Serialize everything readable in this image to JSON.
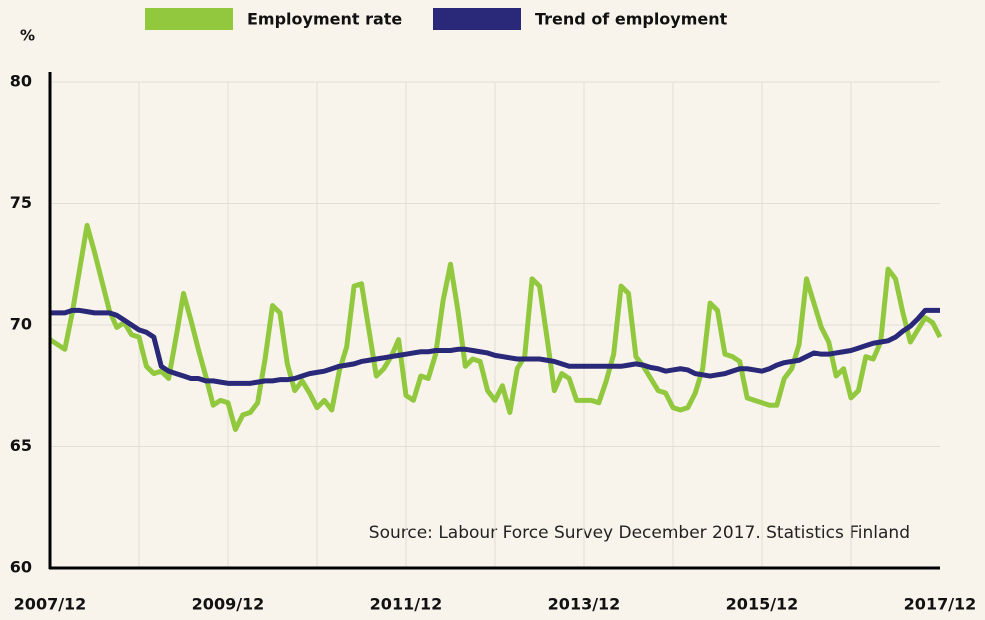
{
  "chart_data": {
    "type": "line",
    "y_label": "%",
    "annotation": "Source: Labour Force Survey December 2017. Statistics Finland",
    "categories": [
      "2007/12",
      null,
      null,
      null,
      null,
      null,
      null,
      null,
      null,
      null,
      null,
      null,
      null,
      null,
      null,
      null,
      null,
      null,
      null,
      null,
      null,
      null,
      null,
      null,
      "2009/12",
      null,
      null,
      null,
      null,
      null,
      null,
      null,
      null,
      null,
      null,
      null,
      null,
      null,
      null,
      null,
      null,
      null,
      null,
      null,
      null,
      null,
      null,
      null,
      "2011/12",
      null,
      null,
      null,
      null,
      null,
      null,
      null,
      null,
      null,
      null,
      null,
      null,
      null,
      null,
      null,
      null,
      null,
      null,
      null,
      null,
      null,
      null,
      null,
      "2013/12",
      null,
      null,
      null,
      null,
      null,
      null,
      null,
      null,
      null,
      null,
      null,
      null,
      null,
      null,
      null,
      null,
      null,
      null,
      null,
      null,
      null,
      null,
      null,
      "2015/12",
      null,
      null,
      null,
      null,
      null,
      null,
      null,
      null,
      null,
      null,
      null,
      null,
      null,
      null,
      null,
      null,
      null,
      null,
      null,
      null,
      null,
      null,
      null,
      "2017/12"
    ],
    "series": [
      {
        "name": "Employment rate",
        "color": "#92c83e",
        "values": [
          69.4,
          69.2,
          69.0,
          70.5,
          72.3,
          74.1,
          73.0,
          71.8,
          70.6,
          69.9,
          70.1,
          69.6,
          69.5,
          68.3,
          68.0,
          68.1,
          67.8,
          69.5,
          71.3,
          70.2,
          69.0,
          67.9,
          66.7,
          66.9,
          66.8,
          65.7,
          66.3,
          66.4,
          66.8,
          68.6,
          70.8,
          70.5,
          68.4,
          67.3,
          67.7,
          67.2,
          66.6,
          66.9,
          66.5,
          68.1,
          69.1,
          71.6,
          71.7,
          69.8,
          67.9,
          68.2,
          68.7,
          69.4,
          67.1,
          66.9,
          67.9,
          67.8,
          68.8,
          71.0,
          72.5,
          70.6,
          68.3,
          68.6,
          68.5,
          67.3,
          66.9,
          67.5,
          66.4,
          68.2,
          68.7,
          71.9,
          71.6,
          69.5,
          67.3,
          68.0,
          67.8,
          66.9,
          66.9,
          66.9,
          66.8,
          67.7,
          68.8,
          71.6,
          71.3,
          68.7,
          68.3,
          67.8,
          67.3,
          67.2,
          66.6,
          66.5,
          66.6,
          67.2,
          68.2,
          70.9,
          70.6,
          68.8,
          68.7,
          68.5,
          67.0,
          66.9,
          66.8,
          66.7,
          66.7,
          67.8,
          68.2,
          69.2,
          71.9,
          70.9,
          69.9,
          69.3,
          67.9,
          68.2,
          67.0,
          67.3,
          68.7,
          68.6,
          69.3,
          72.3,
          71.9,
          70.5,
          69.3,
          69.8,
          70.3,
          70.1,
          69.5
        ]
      },
      {
        "name": "Trend of employment",
        "color": "#2a2878",
        "values": [
          70.5,
          70.5,
          70.5,
          70.6,
          70.6,
          70.55,
          70.5,
          70.5,
          70.5,
          70.4,
          70.2,
          70.0,
          69.8,
          69.7,
          69.5,
          68.3,
          68.1,
          68.0,
          67.9,
          67.8,
          67.8,
          67.7,
          67.7,
          67.65,
          67.6,
          67.6,
          67.6,
          67.6,
          67.65,
          67.7,
          67.7,
          67.75,
          67.75,
          67.8,
          67.9,
          68.0,
          68.05,
          68.1,
          68.2,
          68.3,
          68.35,
          68.4,
          68.5,
          68.55,
          68.6,
          68.65,
          68.7,
          68.75,
          68.8,
          68.85,
          68.9,
          68.9,
          68.95,
          68.95,
          68.95,
          69.0,
          69.0,
          68.95,
          68.9,
          68.85,
          68.75,
          68.7,
          68.65,
          68.6,
          68.6,
          68.6,
          68.6,
          68.55,
          68.5,
          68.4,
          68.3,
          68.3,
          68.3,
          68.3,
          68.3,
          68.3,
          68.3,
          68.3,
          68.35,
          68.4,
          68.35,
          68.25,
          68.2,
          68.1,
          68.15,
          68.2,
          68.15,
          68.0,
          67.95,
          67.9,
          67.95,
          68.0,
          68.1,
          68.2,
          68.2,
          68.15,
          68.1,
          68.2,
          68.35,
          68.45,
          68.5,
          68.55,
          68.7,
          68.85,
          68.8,
          68.8,
          68.85,
          68.9,
          68.95,
          69.05,
          69.15,
          69.25,
          69.3,
          69.35,
          69.5,
          69.75,
          69.95,
          70.25,
          70.6,
          70.6,
          70.6
        ]
      }
    ],
    "ylim": [
      60,
      80
    ],
    "yticks": [
      60,
      65,
      70,
      75,
      80
    ],
    "grid": true
  }
}
